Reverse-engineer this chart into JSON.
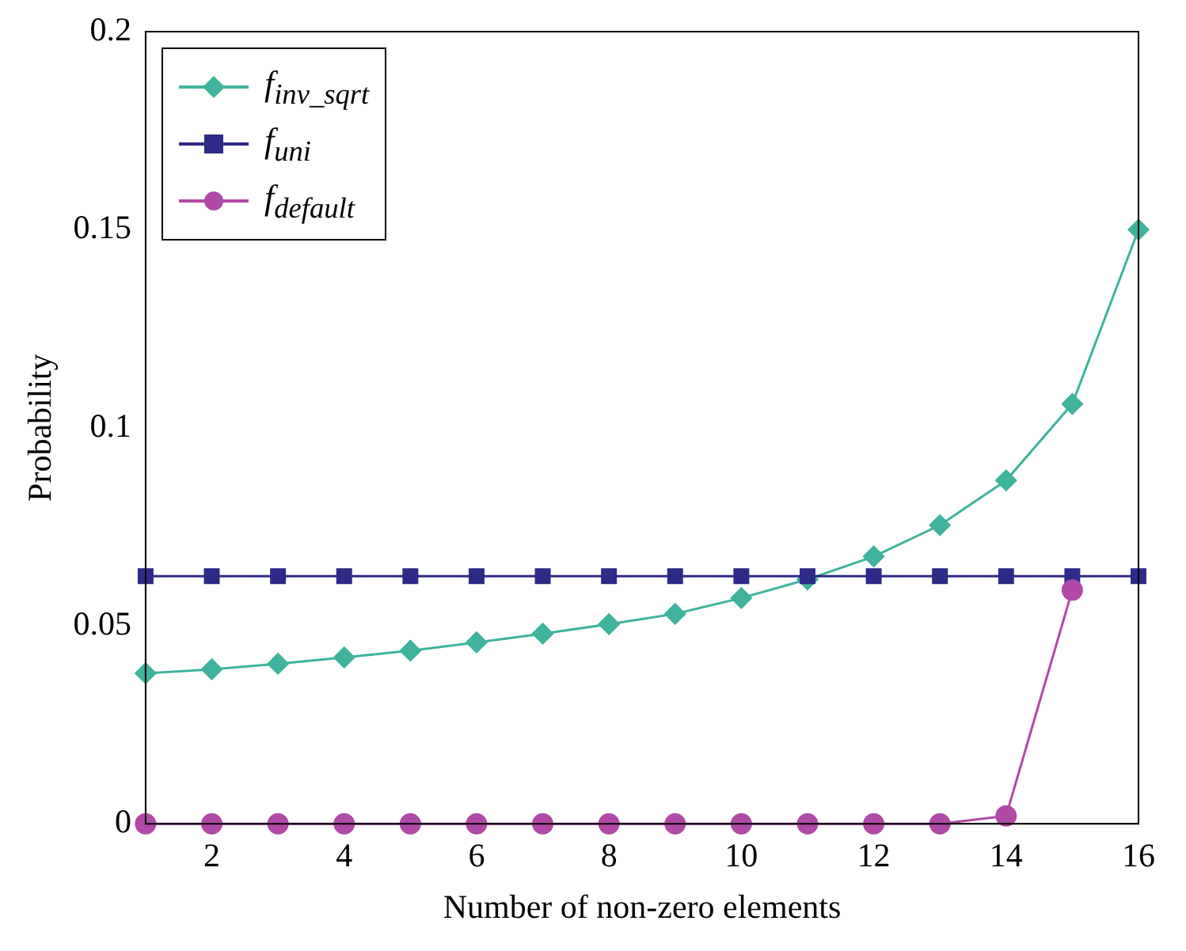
{
  "chart_data": {
    "type": "line",
    "xlabel": "Number of non-zero elements",
    "ylabel": "Probability",
    "x": [
      1,
      2,
      3,
      4,
      5,
      6,
      7,
      8,
      9,
      10,
      11,
      12,
      13,
      14,
      15,
      16
    ],
    "series": [
      {
        "name": "f$_{inv_sqrt}$",
        "color": "#3fb39d",
        "marker": "diamond",
        "values": [
          0.038,
          0.039,
          0.0404,
          0.042,
          0.0437,
          0.0458,
          0.048,
          0.0504,
          0.053,
          0.057,
          0.0617,
          0.0675,
          0.0754,
          0.0867,
          0.106,
          0.15
        ]
      },
      {
        "name": "f$_{uni}$",
        "color": "#2e2a87",
        "marker": "square",
        "values": [
          0.0625,
          0.0625,
          0.0625,
          0.0625,
          0.0625,
          0.0625,
          0.0625,
          0.0625,
          0.0625,
          0.0625,
          0.0625,
          0.0625,
          0.0625,
          0.0625,
          0.0625,
          0.0625
        ]
      },
      {
        "name": "f$_{default}$",
        "color": "#b04aa6",
        "marker": "circle",
        "values": [
          0,
          0,
          0,
          0,
          0,
          0,
          0,
          0,
          0,
          0,
          0,
          0,
          0,
          0.002,
          0.059,
          null
        ]
      }
    ],
    "xlim": [
      1,
      16
    ],
    "xticks": [
      2,
      4,
      6,
      8,
      10,
      12,
      14,
      16
    ],
    "ylim": [
      0,
      0.2
    ],
    "yticks": [
      0,
      0.05,
      0.1,
      0.15,
      0.2
    ],
    "grid": false,
    "legend": "top left"
  }
}
